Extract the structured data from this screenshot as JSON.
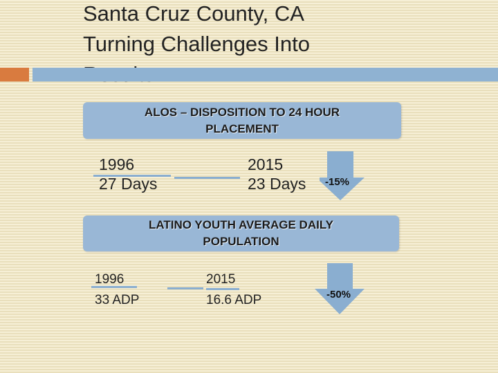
{
  "slide": {
    "title_lines": [
      "Santa Cruz County, CA",
      "Turning Challenges Into",
      "Results"
    ]
  },
  "alos": {
    "banner_lines": [
      "ALOS – DISPOSITION TO 24 HOUR",
      "PLACEMENT"
    ],
    "start": {
      "year": "1996",
      "value": "27 Days"
    },
    "end": {
      "year": "2015",
      "value": "23 Days"
    },
    "change": "-15%"
  },
  "adp": {
    "banner_lines": [
      "LATINO YOUTH AVERAGE DAILY",
      "POPULATION"
    ],
    "start": {
      "year": "1996",
      "value": "33 ADP"
    },
    "end": {
      "year": "2015",
      "value": "16.6 ADP"
    },
    "change": "-50%"
  },
  "colors": {
    "accent_orange": "#d97b3f",
    "accent_blue": "#8fb2d2",
    "banner_blue": "#99b7d6",
    "arrow_blue": "#8aaed0"
  }
}
